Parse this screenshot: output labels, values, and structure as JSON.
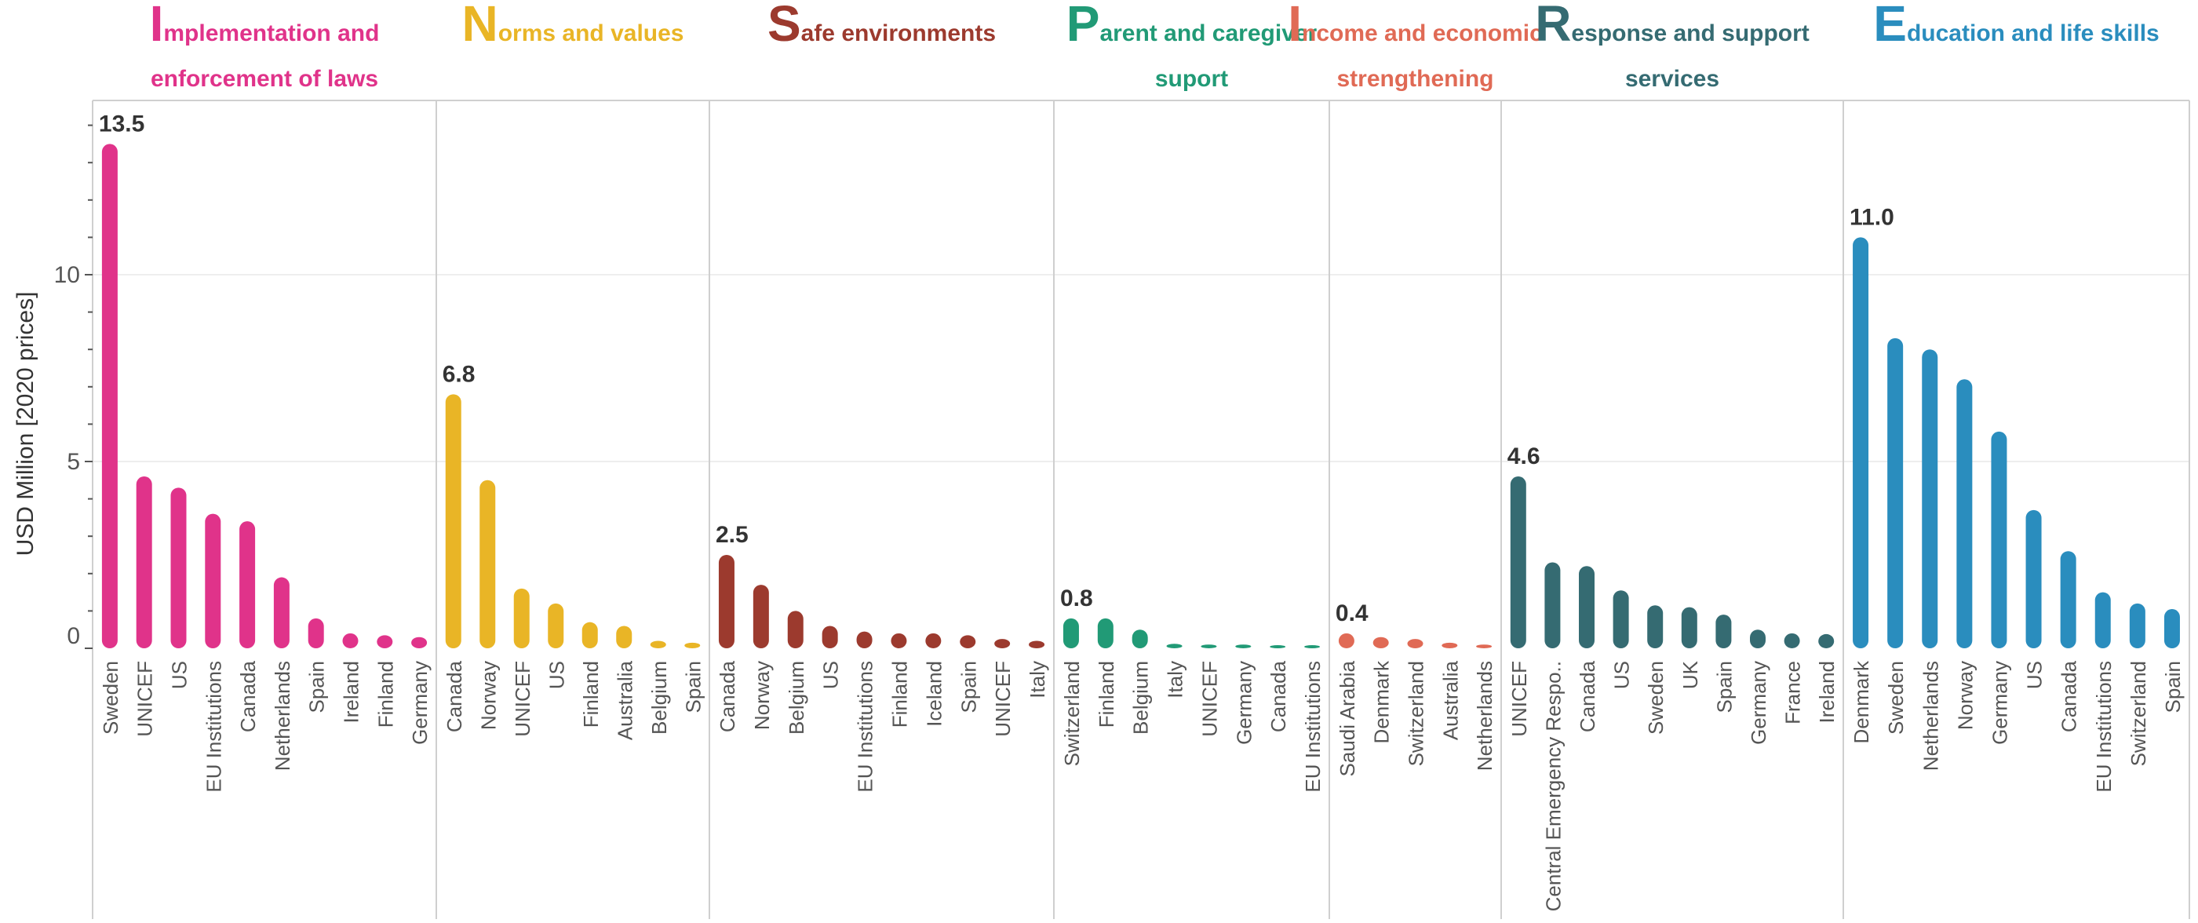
{
  "chart_data": {
    "type": "bar",
    "ylabel": "USD Million [2020 prices]",
    "yticks": [
      0,
      5,
      10
    ],
    "ylim": [
      0,
      14.1
    ],
    "grid": true,
    "panels": [
      {
        "letter": "I",
        "title_lines": [
          "mplementation and",
          "enforcement of laws"
        ],
        "color": "#E0338A",
        "categories": [
          "Sweden",
          "UNICEF",
          "US",
          "EU Institutions",
          "Canada",
          "Netherlands",
          "Spain",
          "Ireland",
          "Finland",
          "Germany"
        ],
        "values": [
          13.5,
          4.6,
          4.3,
          3.6,
          3.4,
          1.9,
          0.8,
          0.4,
          0.35,
          0.3
        ],
        "peak_label": "13.5"
      },
      {
        "letter": "N",
        "title_lines": [
          "orms and values"
        ],
        "color": "#E9B526",
        "categories": [
          "Canada",
          "Norway",
          "UNICEF",
          "US",
          "Finland",
          "Australia",
          "Belgium",
          "Spain"
        ],
        "values": [
          6.8,
          4.5,
          1.6,
          1.2,
          0.7,
          0.6,
          0.2,
          0.15
        ],
        "peak_label": "6.8"
      },
      {
        "letter": "S",
        "title_lines": [
          "afe environments"
        ],
        "color": "#9C3A2E",
        "categories": [
          "Canada",
          "Norway",
          "Belgium",
          "US",
          "EU Institutions",
          "Finland",
          "Iceland",
          "Spain",
          "UNICEF",
          "Italy"
        ],
        "values": [
          2.5,
          1.7,
          1.0,
          0.6,
          0.45,
          0.4,
          0.4,
          0.35,
          0.25,
          0.2
        ],
        "peak_label": "2.5"
      },
      {
        "letter": "P",
        "title_lines": [
          "arent and caregiver",
          "suport"
        ],
        "color": "#219A76",
        "categories": [
          "Switzerland",
          "Finland",
          "Belgium",
          "Italy",
          "UNICEF",
          "Germany",
          "Canada",
          "EU Institutions"
        ],
        "values": [
          0.8,
          0.8,
          0.5,
          0.12,
          0.1,
          0.1,
          0.08,
          0.07
        ],
        "peak_label": "0.8"
      },
      {
        "letter": "I",
        "title_lines": [
          "ncome and economic",
          "strengthening"
        ],
        "color": "#E06A55",
        "categories": [
          "Saudi Arabia",
          "Denmark",
          "Switzerland",
          "Australia",
          "Netherlands"
        ],
        "values": [
          0.4,
          0.3,
          0.25,
          0.15,
          0.1
        ],
        "peak_label": "0.4"
      },
      {
        "letter": "R",
        "title_lines": [
          "esponse and support",
          "services"
        ],
        "color": "#356B72",
        "categories": [
          "UNICEF",
          "Central Emergency Respo..",
          "Canada",
          "US",
          "Sweden",
          "UK",
          "Spain",
          "Germany",
          "France",
          "Ireland"
        ],
        "values": [
          4.6,
          2.3,
          2.2,
          1.55,
          1.15,
          1.1,
          0.9,
          0.5,
          0.4,
          0.38
        ],
        "peak_label": "4.6"
      },
      {
        "letter": "E",
        "title_lines": [
          "ducation and life skills"
        ],
        "color": "#2A8DBE",
        "categories": [
          "Denmark",
          "Sweden",
          "Netherlands",
          "Norway",
          "Germany",
          "US",
          "Canada",
          "EU Institutions",
          "Switzerland",
          "Spain"
        ],
        "values": [
          11.0,
          8.3,
          8.0,
          7.2,
          5.8,
          3.7,
          2.6,
          1.5,
          1.2,
          1.05
        ],
        "peak_label": "11.0"
      }
    ]
  }
}
